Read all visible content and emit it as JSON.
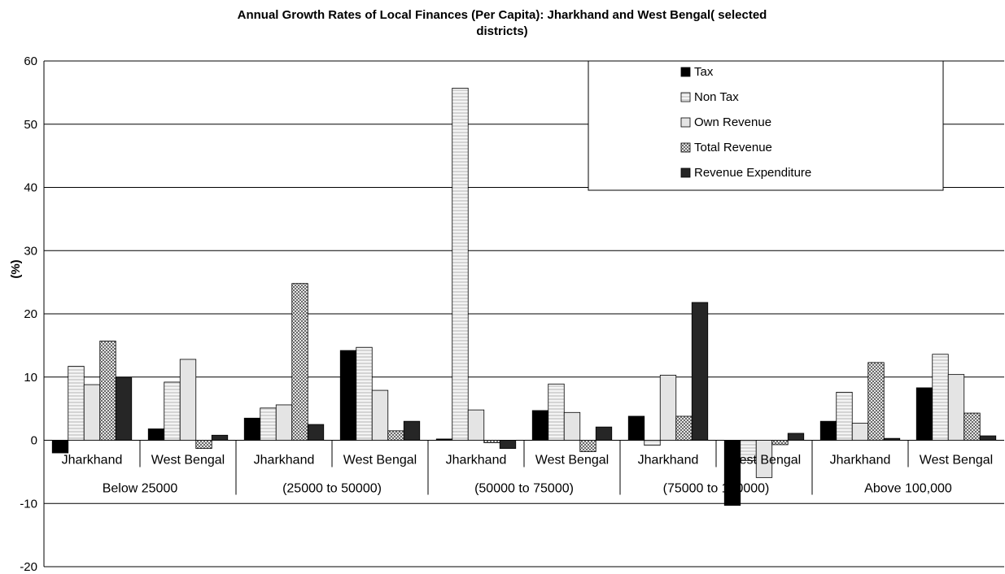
{
  "chart_data": {
    "type": "bar",
    "title_line1": "Annual Growth Rates of Local Finances (Per Capita): Jharkhand and West Bengal( selected",
    "title_line2": "districts)",
    "ylabel": "(%)",
    "xlabel": "",
    "ylim": [
      -20,
      60
    ],
    "yticks": [
      -20,
      -10,
      0,
      10,
      20,
      30,
      40,
      50,
      60
    ],
    "grid": true,
    "legend_position": "top-right",
    "groups": [
      "Below  25000",
      "(25000 to 50000)",
      "(50000 to 75000)",
      "(75000 to 100000)",
      "Above 100,000"
    ],
    "categories": [
      "Jharkhand",
      "West Bengal",
      "Jharkhand",
      "West Bengal",
      "Jharkhand",
      "West Bengal",
      "Jharkhand",
      "West Bengal",
      "Jharkhand",
      "West Bengal"
    ],
    "series": [
      {
        "name": "Tax",
        "color": "#000000",
        "pattern": "solid-black",
        "values": [
          -2.0,
          1.8,
          3.5,
          14.2,
          0.2,
          4.7,
          3.8,
          -10.3,
          3.0,
          8.3
        ]
      },
      {
        "name": "Non Tax",
        "color": "#c8c8c8",
        "pattern": "horizontal-lines",
        "values": [
          11.7,
          9.2,
          5.1,
          14.7,
          55.7,
          8.9,
          -0.8,
          -3.2,
          7.6,
          13.6
        ]
      },
      {
        "name": "Own Revenue",
        "color": "#dcdcdc",
        "pattern": "light-solid",
        "values": [
          8.8,
          12.8,
          5.6,
          7.9,
          4.8,
          4.4,
          10.3,
          -5.9,
          2.7,
          10.4
        ]
      },
      {
        "name": "Total Revenue",
        "color": "#b0b0b0",
        "pattern": "dotted",
        "values": [
          15.7,
          -1.3,
          24.8,
          1.5,
          -0.4,
          -1.8,
          3.8,
          -0.7,
          12.3,
          4.3
        ]
      },
      {
        "name": "Revenue Expenditure",
        "color": "#1e1e1e",
        "pattern": "dark-solid",
        "values": [
          9.9,
          0.8,
          2.5,
          3.0,
          -1.3,
          2.1,
          21.8,
          1.1,
          0.3,
          0.7
        ]
      }
    ]
  }
}
